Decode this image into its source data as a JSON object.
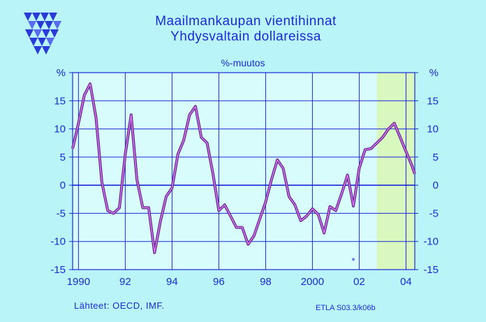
{
  "title_line1": "Maailmankaupan  vientihinnat",
  "title_line2": "Yhdysvaltain  dollareissa",
  "unit_label": "%-muutos",
  "source_label": "Lähteet:   OECD, IMF.",
  "code_label": "ETLA S03.3/k06b",
  "marker_symbol": "*",
  "colors": {
    "background": "#b8f4f8",
    "plot_background": "#d8fcfc",
    "forecast_shading": "#d8f8c0",
    "grid": "#1a2ad8",
    "text": "#1a2ad8",
    "line_outer": "#5a2a88",
    "line_inner": "#e070f0"
  },
  "chart_data": {
    "type": "line",
    "title": "Maailmankaupan  vientihinnat",
    "subtitle": "Yhdysvaltain  dollareissa",
    "ylabel": "%-muutos",
    "y_unit_label": "%",
    "xlim": [
      1989.75,
      2004.375
    ],
    "ylim": [
      -15,
      20
    ],
    "grid": true,
    "x_tick_labels": [
      "1990",
      "92",
      "94",
      "96",
      "98",
      "2000",
      "02",
      "04"
    ],
    "x_tick_values": [
      1990,
      1992,
      1994,
      1996,
      1998,
      2000,
      2002,
      2004
    ],
    "y_tick_labels": [
      "-15",
      "-10",
      "-5",
      "0",
      "5",
      "10",
      "15",
      "%"
    ],
    "y_tick_values": [
      -15,
      -10,
      -5,
      0,
      5,
      10,
      15,
      20
    ],
    "forecast_shaded_from": 2002.75,
    "series": [
      {
        "x": [
          1989.75,
          1990.0,
          1990.25,
          1990.5,
          1990.75,
          1991.0,
          1991.25,
          1991.5,
          1991.75,
          1992.0,
          1992.25,
          1992.5,
          1992.75,
          1993.0,
          1993.25,
          1993.5,
          1993.75,
          1994.0,
          1994.25,
          1994.5,
          1994.75,
          1995.0,
          1995.25,
          1995.5,
          1995.75,
          1996.0,
          1996.25,
          1996.5,
          1996.75,
          1997.0,
          1997.25,
          1997.5,
          1997.75,
          1998.0,
          1998.25,
          1998.5,
          1998.75,
          1999.0,
          1999.25,
          1999.5,
          1999.75,
          2000.0,
          2000.25,
          2000.5,
          2000.75,
          2001.0,
          2001.25,
          2001.5,
          2001.75,
          2002.0,
          2002.25,
          2002.5,
          2002.75,
          2003.0,
          2003.25,
          2003.5,
          2003.75,
          2004.0,
          2004.25,
          2004.375
        ],
        "y": [
          6.5,
          11.0,
          16.0,
          18.0,
          12.0,
          0.5,
          -4.5,
          -5.0,
          -4.0,
          5.5,
          12.5,
          1.0,
          -4.0,
          -4.0,
          -12.0,
          -6.5,
          -2.0,
          -0.5,
          5.5,
          8.0,
          12.5,
          14.0,
          8.5,
          7.5,
          2.0,
          -4.5,
          -3.5,
          -5.5,
          -7.5,
          -7.5,
          -10.5,
          -9.0,
          -6.0,
          -3.0,
          1.0,
          4.5,
          3.0,
          -2.0,
          -3.5,
          -6.3,
          -5.5,
          -4.2,
          -5.2,
          -8.5,
          -3.8,
          -4.5,
          -1.5,
          1.8,
          -3.7,
          3.0,
          6.3,
          6.5,
          7.5,
          8.5,
          10.0,
          11.0,
          8.5,
          6.0,
          3.5,
          2.0
        ]
      }
    ]
  }
}
